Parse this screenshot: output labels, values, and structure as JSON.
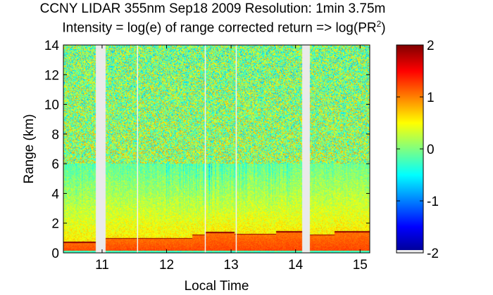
{
  "title_main": "CCNY LIDAR 355nm Sep18 2009 Resolution: 1min 3.75m",
  "title_sub_prefix": "Intensity = log(e) of range corrected return => log(PR",
  "title_sub_sup": "2",
  "title_sub_suffix": ")",
  "chart_data": {
    "type": "heatmap",
    "title": "CCNY LIDAR 355nm Sep18 2009 Resolution: 1min 3.75m",
    "subtitle": "Intensity = log(e) of range corrected return => log(PR2)",
    "xlabel": "Local Time",
    "ylabel": "Range (km)",
    "xlim": [
      10.4,
      15.15
    ],
    "ylim": [
      0,
      14
    ],
    "xticks": [
      11,
      12,
      13,
      14,
      15
    ],
    "xtick_labels": [
      "11",
      "12",
      "13",
      "14",
      "15"
    ],
    "yticks": [
      0,
      2,
      4,
      6,
      8,
      10,
      12,
      14
    ],
    "ytick_labels": [
      "0",
      "2",
      "4",
      "6",
      "8",
      "10",
      "12",
      "14"
    ],
    "colorbar": {
      "colormap": "jet",
      "clim": [
        -2,
        2
      ],
      "ticks": [
        -2,
        -1,
        0,
        1,
        2
      ],
      "tick_labels": [
        "-2",
        "-1",
        "0",
        "1",
        "2"
      ]
    },
    "data_gaps_hours": [
      [
        10.9,
        11.05
      ],
      [
        14.1,
        14.22
      ]
    ],
    "boundary_layer_top_km": [
      {
        "start": 10.4,
        "end": 10.9,
        "height": 0.75
      },
      {
        "start": 11.05,
        "end": 11.55,
        "height": 1.0
      },
      {
        "start": 11.55,
        "end": 12.4,
        "height": 1.0
      },
      {
        "start": 12.4,
        "end": 12.6,
        "height": 1.25
      },
      {
        "start": 12.6,
        "end": 13.05,
        "height": 1.4
      },
      {
        "start": 13.05,
        "end": 13.7,
        "height": 1.3
      },
      {
        "start": 13.7,
        "end": 14.1,
        "height": 1.45
      },
      {
        "start": 14.22,
        "end": 14.6,
        "height": 1.25
      },
      {
        "start": 14.6,
        "end": 15.15,
        "height": 1.45
      }
    ]
  }
}
